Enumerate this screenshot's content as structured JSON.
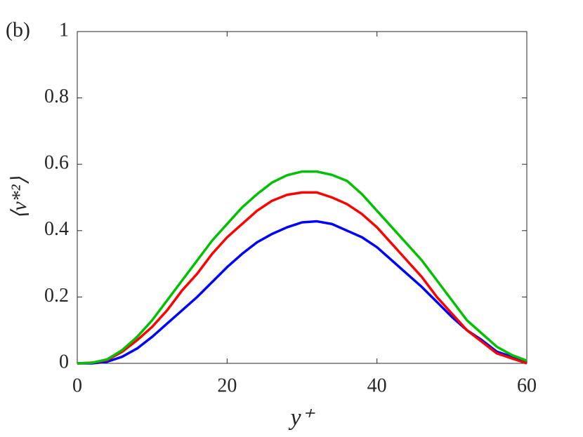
{
  "chart_data": {
    "type": "line",
    "panel_label": "(b)",
    "x_label": "y⁺",
    "y_label": "⟨v*²⟩",
    "x": [
      0,
      2,
      4,
      6,
      8,
      10,
      12,
      14,
      16,
      18,
      20,
      22,
      24,
      26,
      28,
      30,
      32,
      34,
      36,
      38,
      40,
      42,
      44,
      46,
      48,
      50,
      52,
      54,
      56,
      58,
      60
    ],
    "series": [
      {
        "color": "#0000ff",
        "values": [
          0,
          0,
          0.005,
          0.02,
          0.045,
          0.08,
          0.12,
          0.16,
          0.2,
          0.245,
          0.29,
          0.33,
          0.365,
          0.39,
          0.41,
          0.425,
          0.428,
          0.42,
          0.4,
          0.38,
          0.35,
          0.31,
          0.27,
          0.23,
          0.185,
          0.14,
          0.1,
          0.07,
          0.035,
          0.02,
          0
        ]
      },
      {
        "color": "#ff0000",
        "values": [
          0,
          0.002,
          0.01,
          0.035,
          0.07,
          0.11,
          0.16,
          0.22,
          0.27,
          0.33,
          0.38,
          0.42,
          0.46,
          0.49,
          0.508,
          0.515,
          0.515,
          0.5,
          0.48,
          0.45,
          0.41,
          0.36,
          0.31,
          0.26,
          0.2,
          0.15,
          0.1,
          0.065,
          0.03,
          0.015,
          0
        ]
      },
      {
        "color": "#00c000",
        "values": [
          0,
          0.002,
          0.012,
          0.04,
          0.08,
          0.13,
          0.19,
          0.25,
          0.31,
          0.37,
          0.42,
          0.47,
          0.51,
          0.545,
          0.567,
          0.578,
          0.578,
          0.568,
          0.55,
          0.51,
          0.46,
          0.41,
          0.36,
          0.31,
          0.25,
          0.19,
          0.13,
          0.09,
          0.05,
          0.025,
          0.008
        ]
      }
    ],
    "xlim": [
      0,
      60
    ],
    "ylim": [
      0,
      1
    ],
    "xticks": [
      0,
      20,
      40,
      60
    ],
    "yticks": [
      0,
      0.2,
      0.4,
      0.6,
      0.8,
      1
    ]
  }
}
